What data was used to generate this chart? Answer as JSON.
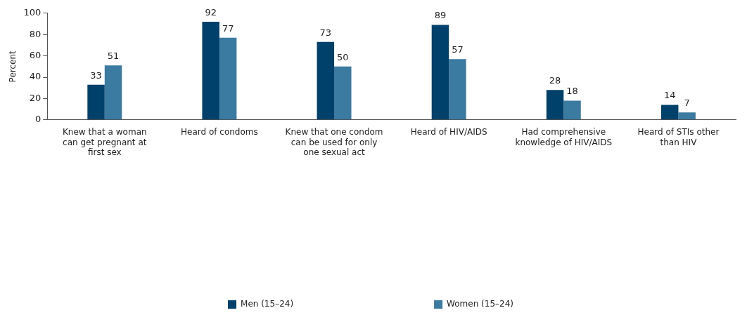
{
  "chart_data": {
    "type": "bar",
    "ylabel": "Percent",
    "categories": [
      "Knew that a woman can get pregnant at first sex",
      "Heard of condoms",
      "Knew that one condom can be used for only one sexual act",
      "Heard of HIV/AIDS",
      "Had comprehensive knowledge of HIV/AIDS",
      "Heard of STIs other than HIV"
    ],
    "series": [
      {
        "name": "Men (15–24)",
        "color": "#00416b",
        "values": [
          33,
          92,
          73,
          89,
          28,
          14
        ]
      },
      {
        "name": "Women (15–24)",
        "color": "#3b7aa1",
        "values": [
          51,
          77,
          50,
          57,
          18,
          7
        ]
      }
    ],
    "ylim": [
      0,
      100
    ],
    "yticks": [
      0,
      20,
      40,
      60,
      80,
      100
    ],
    "grid": false,
    "legend": "bottom",
    "data_labels": true
  }
}
